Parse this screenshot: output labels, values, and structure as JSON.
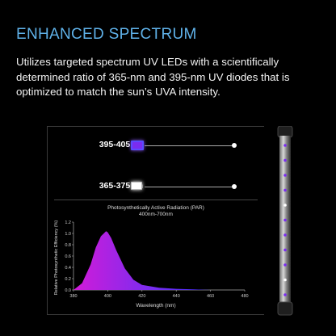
{
  "header": {
    "title": "ENHANCED SPECTRUM",
    "description": "Utilizes targeted spectrum UV LEDs with a scientifically determined ratio of 365-nm and 395-nm UV diodes that is optimized to match the sun’s UVA intensity."
  },
  "leds": [
    {
      "label": "395-405nm",
      "color": "#7a2cf0"
    },
    {
      "label": "365-375nm",
      "color": "#ffffff"
    }
  ],
  "colors": {
    "headline": "#5fb1e8",
    "curve_start": "#1a2cff",
    "curve_end": "#d21bd8"
  },
  "chart_data": {
    "type": "area",
    "title": "Photosynthetically Active Radiation (PAR)",
    "subtitle": "400nm-700nm",
    "xlabel": "Wavelength (nm)",
    "ylabel": "Relative Photosynthetic Efficiency (%)",
    "xlim": [
      380,
      480
    ],
    "ylim": [
      0,
      1.2
    ],
    "xticks": [
      "380",
      "400",
      "420",
      "440",
      "460",
      "480"
    ],
    "yticks": [
      "0.0",
      "0.2",
      "0.4",
      "0.6",
      "0.8",
      "1.0",
      "1.2"
    ],
    "series": [
      {
        "x": [
          380,
          385,
          390,
          393,
          396,
          399,
          400,
          402,
          405,
          410,
          415,
          420,
          430,
          440,
          450,
          460,
          470,
          480
        ],
        "values": [
          0.0,
          0.12,
          0.45,
          0.75,
          0.95,
          1.04,
          1.02,
          0.92,
          0.7,
          0.38,
          0.18,
          0.09,
          0.04,
          0.02,
          0.01,
          0.0,
          0.0,
          0.0
        ]
      }
    ]
  }
}
